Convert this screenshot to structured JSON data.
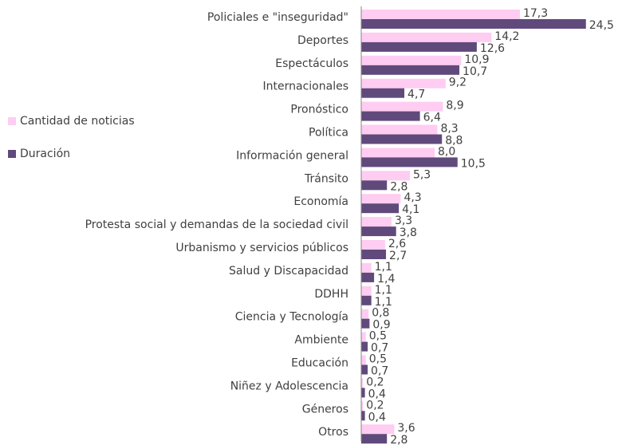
{
  "chart_data": {
    "type": "hbar",
    "categories": [
      "Policiales e \"inseguridad\"",
      "Deportes",
      "Espectáculos",
      "Internacionales",
      "Pronóstico",
      "Política",
      "Información general",
      "Tránsito",
      "Economía",
      "Protesta social y demandas de la sociedad civil",
      "Urbanismo y servicios públicos",
      "Salud y Discapacidad",
      "DDHH",
      "Ciencia y Tecnología",
      "Ambiente",
      "Educación",
      "Niñez y Adolescencia",
      "Géneros",
      "Otros"
    ],
    "series": [
      {
        "name": "Cantidad de noticias",
        "color": "#ffccf2",
        "values": [
          17.3,
          14.2,
          10.9,
          9.2,
          8.9,
          8.3,
          8.0,
          5.3,
          4.3,
          3.3,
          2.6,
          1.1,
          1.1,
          0.8,
          0.5,
          0.5,
          0.2,
          0.2,
          3.6
        ],
        "value_labels": [
          "17,3",
          "14,2",
          "10,9",
          "9,2",
          "8,9",
          "8,3",
          "8,0",
          "5,3",
          "4,3",
          "3,3",
          "2,6",
          "1,1",
          "1,1",
          "0,8",
          "0,5",
          "0,5",
          "0,2",
          "0,2",
          "3,6"
        ]
      },
      {
        "name": "Duración",
        "color": "#604a7b",
        "values": [
          24.5,
          12.6,
          10.7,
          4.7,
          6.4,
          8.8,
          10.5,
          2.8,
          4.1,
          3.8,
          2.7,
          1.4,
          1.1,
          0.9,
          0.7,
          0.7,
          0.4,
          0.4,
          2.8
        ],
        "value_labels": [
          "24,5",
          "12,6",
          "10,7",
          "4,7",
          "6,4",
          "8,8",
          "10,5",
          "2,8",
          "4,1",
          "3,8",
          "2,7",
          "1,4",
          "1,1",
          "0,9",
          "0,7",
          "0,7",
          "0,4",
          "0,4",
          "2,8"
        ]
      }
    ],
    "xlim": [
      0,
      28
    ],
    "legend": "left"
  }
}
